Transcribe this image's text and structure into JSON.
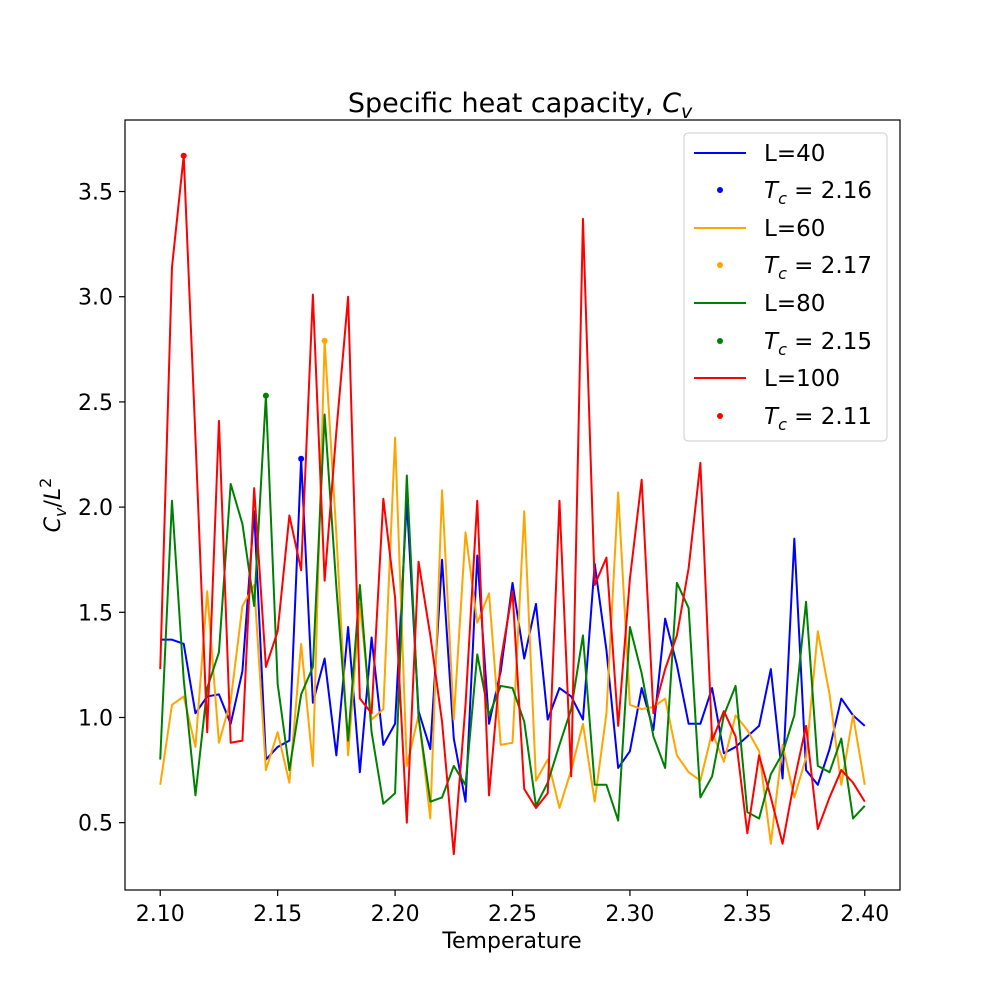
{
  "chart_data": {
    "type": "line",
    "title": "Specific heat capacity, ",
    "title_math": "C",
    "title_math_sub": "v",
    "xlabel": "Temperature",
    "ylabel_main": "C",
    "ylabel_sub": "v",
    "ylabel_slash": "/",
    "ylabel_den": "L",
    "ylabel_sup": "2",
    "xlim": [
      2.085,
      2.415
    ],
    "ylim": [
      0.18,
      3.84
    ],
    "x_ticks": [
      2.1,
      2.15,
      2.2,
      2.25,
      2.3,
      2.35,
      2.4
    ],
    "x_tick_labels": [
      "2.10",
      "2.15",
      "2.20",
      "2.25",
      "2.30",
      "2.35",
      "2.40"
    ],
    "y_ticks": [
      0.5,
      1.0,
      1.5,
      2.0,
      2.5,
      3.0,
      3.5
    ],
    "y_tick_labels": [
      "0.5",
      "1.0",
      "1.5",
      "2.0",
      "2.5",
      "3.0",
      "3.5"
    ],
    "grid": false,
    "legend_position": "upper-right",
    "x": [
      2.1,
      2.105,
      2.11,
      2.115,
      2.12,
      2.125,
      2.13,
      2.135,
      2.14,
      2.145,
      2.15,
      2.155,
      2.16,
      2.165,
      2.17,
      2.175,
      2.18,
      2.185,
      2.19,
      2.195,
      2.2,
      2.205,
      2.21,
      2.215,
      2.22,
      2.225,
      2.23,
      2.235,
      2.24,
      2.245,
      2.25,
      2.255,
      2.26,
      2.265,
      2.27,
      2.275,
      2.28,
      2.285,
      2.29,
      2.295,
      2.3,
      2.305,
      2.31,
      2.315,
      2.32,
      2.325,
      2.33,
      2.335,
      2.34,
      2.345,
      2.35,
      2.355,
      2.36,
      2.365,
      2.37,
      2.375,
      2.38,
      2.385,
      2.39,
      2.395,
      2.4
    ],
    "series": [
      {
        "name": "L=40",
        "color": "#0000ff",
        "values": [
          1.37,
          1.37,
          1.35,
          1.02,
          1.1,
          1.11,
          0.97,
          1.22,
          1.98,
          0.8,
          0.86,
          0.89,
          2.23,
          1.07,
          1.28,
          0.82,
          1.43,
          0.74,
          1.38,
          0.87,
          0.97,
          2.03,
          1.03,
          0.85,
          1.75,
          0.9,
          0.6,
          1.77,
          0.97,
          1.22,
          1.64,
          1.28,
          1.54,
          0.99,
          1.14,
          1.1,
          0.99,
          1.73,
          1.32,
          0.76,
          0.84,
          1.14,
          0.94,
          1.47,
          1.25,
          0.97,
          0.97,
          1.14,
          0.83,
          0.86,
          0.91,
          0.96,
          1.23,
          0.71,
          1.85,
          0.75,
          0.68,
          0.85,
          1.09,
          1.01,
          0.96
        ],
        "marker": {
          "label": "T_c = 2.16",
          "label_pre": "T",
          "label_sub": "c",
          "label_post": " = 2.16",
          "x": 2.16,
          "y": 2.23
        }
      },
      {
        "name": "L=60",
        "color": "#ffa500",
        "values": [
          0.68,
          1.06,
          1.1,
          0.86,
          1.6,
          0.88,
          1.08,
          1.53,
          1.63,
          0.75,
          0.93,
          0.69,
          1.35,
          0.77,
          2.79,
          1.87,
          0.82,
          1.54,
          0.99,
          1.04,
          2.33,
          0.77,
          1.01,
          0.52,
          2.08,
          0.99,
          1.88,
          1.45,
          1.59,
          0.87,
          0.88,
          1.98,
          0.7,
          0.8,
          0.57,
          0.75,
          0.97,
          0.6,
          1.02,
          2.07,
          1.06,
          1.04,
          1.05,
          1.09,
          0.82,
          0.74,
          0.7,
          0.93,
          0.79,
          1.01,
          0.94,
          0.84,
          0.4,
          0.87,
          0.62,
          0.81,
          1.41,
          1.11,
          0.68,
          1.01,
          0.68
        ],
        "marker": {
          "label": "T_c = 2.17",
          "label_pre": "T",
          "label_sub": "c",
          "label_post": " = 2.17",
          "x": 2.17,
          "y": 2.79
        }
      },
      {
        "name": "L=80",
        "color": "#008000",
        "values": [
          0.8,
          2.03,
          1.18,
          0.63,
          1.14,
          1.31,
          2.11,
          1.92,
          1.53,
          2.53,
          1.16,
          0.75,
          1.11,
          1.24,
          2.44,
          1.62,
          0.89,
          1.63,
          0.93,
          0.59,
          0.64,
          2.15,
          1.0,
          0.6,
          0.62,
          0.77,
          0.68,
          1.3,
          1.01,
          1.15,
          1.14,
          0.98,
          0.58,
          0.69,
          0.87,
          1.04,
          1.39,
          0.68,
          0.68,
          0.51,
          1.43,
          1.21,
          0.91,
          0.76,
          1.64,
          1.52,
          0.62,
          0.72,
          1.01,
          1.15,
          0.55,
          0.52,
          0.73,
          0.83,
          1.01,
          1.55,
          0.77,
          0.74,
          0.9,
          0.52,
          0.58
        ],
        "marker": {
          "label": "T_c = 2.15",
          "label_pre": "T",
          "label_sub": "c",
          "label_post": " = 2.15",
          "x": 2.145,
          "y": 2.53
        }
      },
      {
        "name": "L=100",
        "color": "#ff0000",
        "values": [
          1.23,
          3.14,
          3.67,
          2.33,
          0.93,
          2.41,
          0.88,
          0.89,
          2.09,
          1.24,
          1.41,
          1.96,
          1.7,
          3.01,
          1.65,
          2.36,
          3.0,
          1.09,
          1.02,
          2.04,
          1.57,
          0.5,
          1.74,
          1.39,
          0.98,
          0.35,
          1.06,
          2.03,
          0.63,
          1.27,
          1.6,
          0.66,
          0.57,
          0.64,
          2.03,
          0.72,
          3.37,
          1.63,
          1.76,
          0.96,
          1.66,
          2.13,
          1.02,
          1.23,
          1.39,
          1.71,
          2.21,
          0.89,
          1.03,
          0.91,
          0.45,
          0.82,
          0.62,
          0.4,
          0.7,
          0.96,
          0.47,
          0.62,
          0.75,
          0.69,
          0.6
        ],
        "marker": {
          "label": "T_c = 2.11",
          "label_pre": "T",
          "label_sub": "c",
          "label_post": " = 2.11",
          "x": 2.11,
          "y": 3.67
        }
      }
    ]
  }
}
